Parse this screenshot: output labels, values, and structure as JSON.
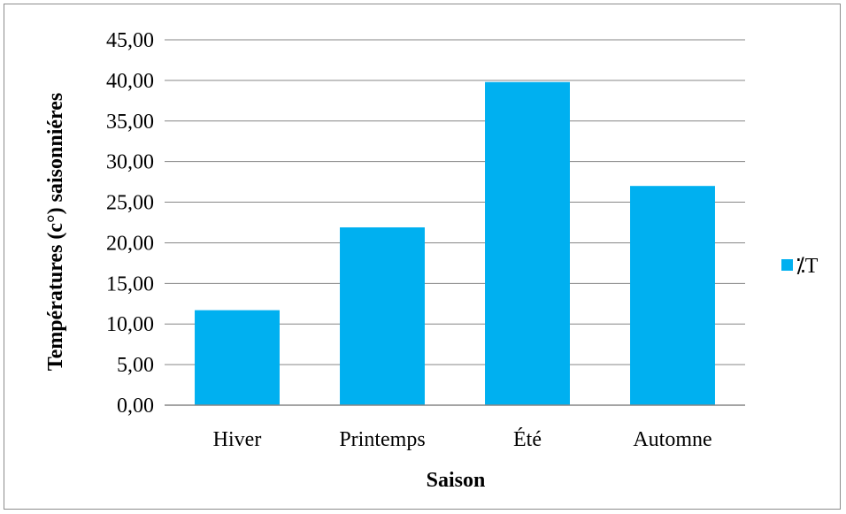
{
  "chart_data": {
    "type": "bar",
    "categories": [
      "Hiver",
      "Printemps",
      "Été",
      "Automne"
    ],
    "series": [
      {
        "name": "⁒T",
        "values": [
          11.7,
          21.9,
          39.8,
          27.0
        ],
        "color": "#00b0f0"
      }
    ],
    "xlabel": "Saison",
    "ylabel": "Températures (c°) saisonniéres",
    "ylim": [
      0,
      45
    ],
    "ytick_step": 5,
    "ytick_labels": [
      "0,00",
      "5,00",
      "10,00",
      "15,00",
      "20,00",
      "25,00",
      "30,00",
      "35,00",
      "40,00",
      "45,00"
    ],
    "grid": true,
    "legend_position": "right"
  }
}
